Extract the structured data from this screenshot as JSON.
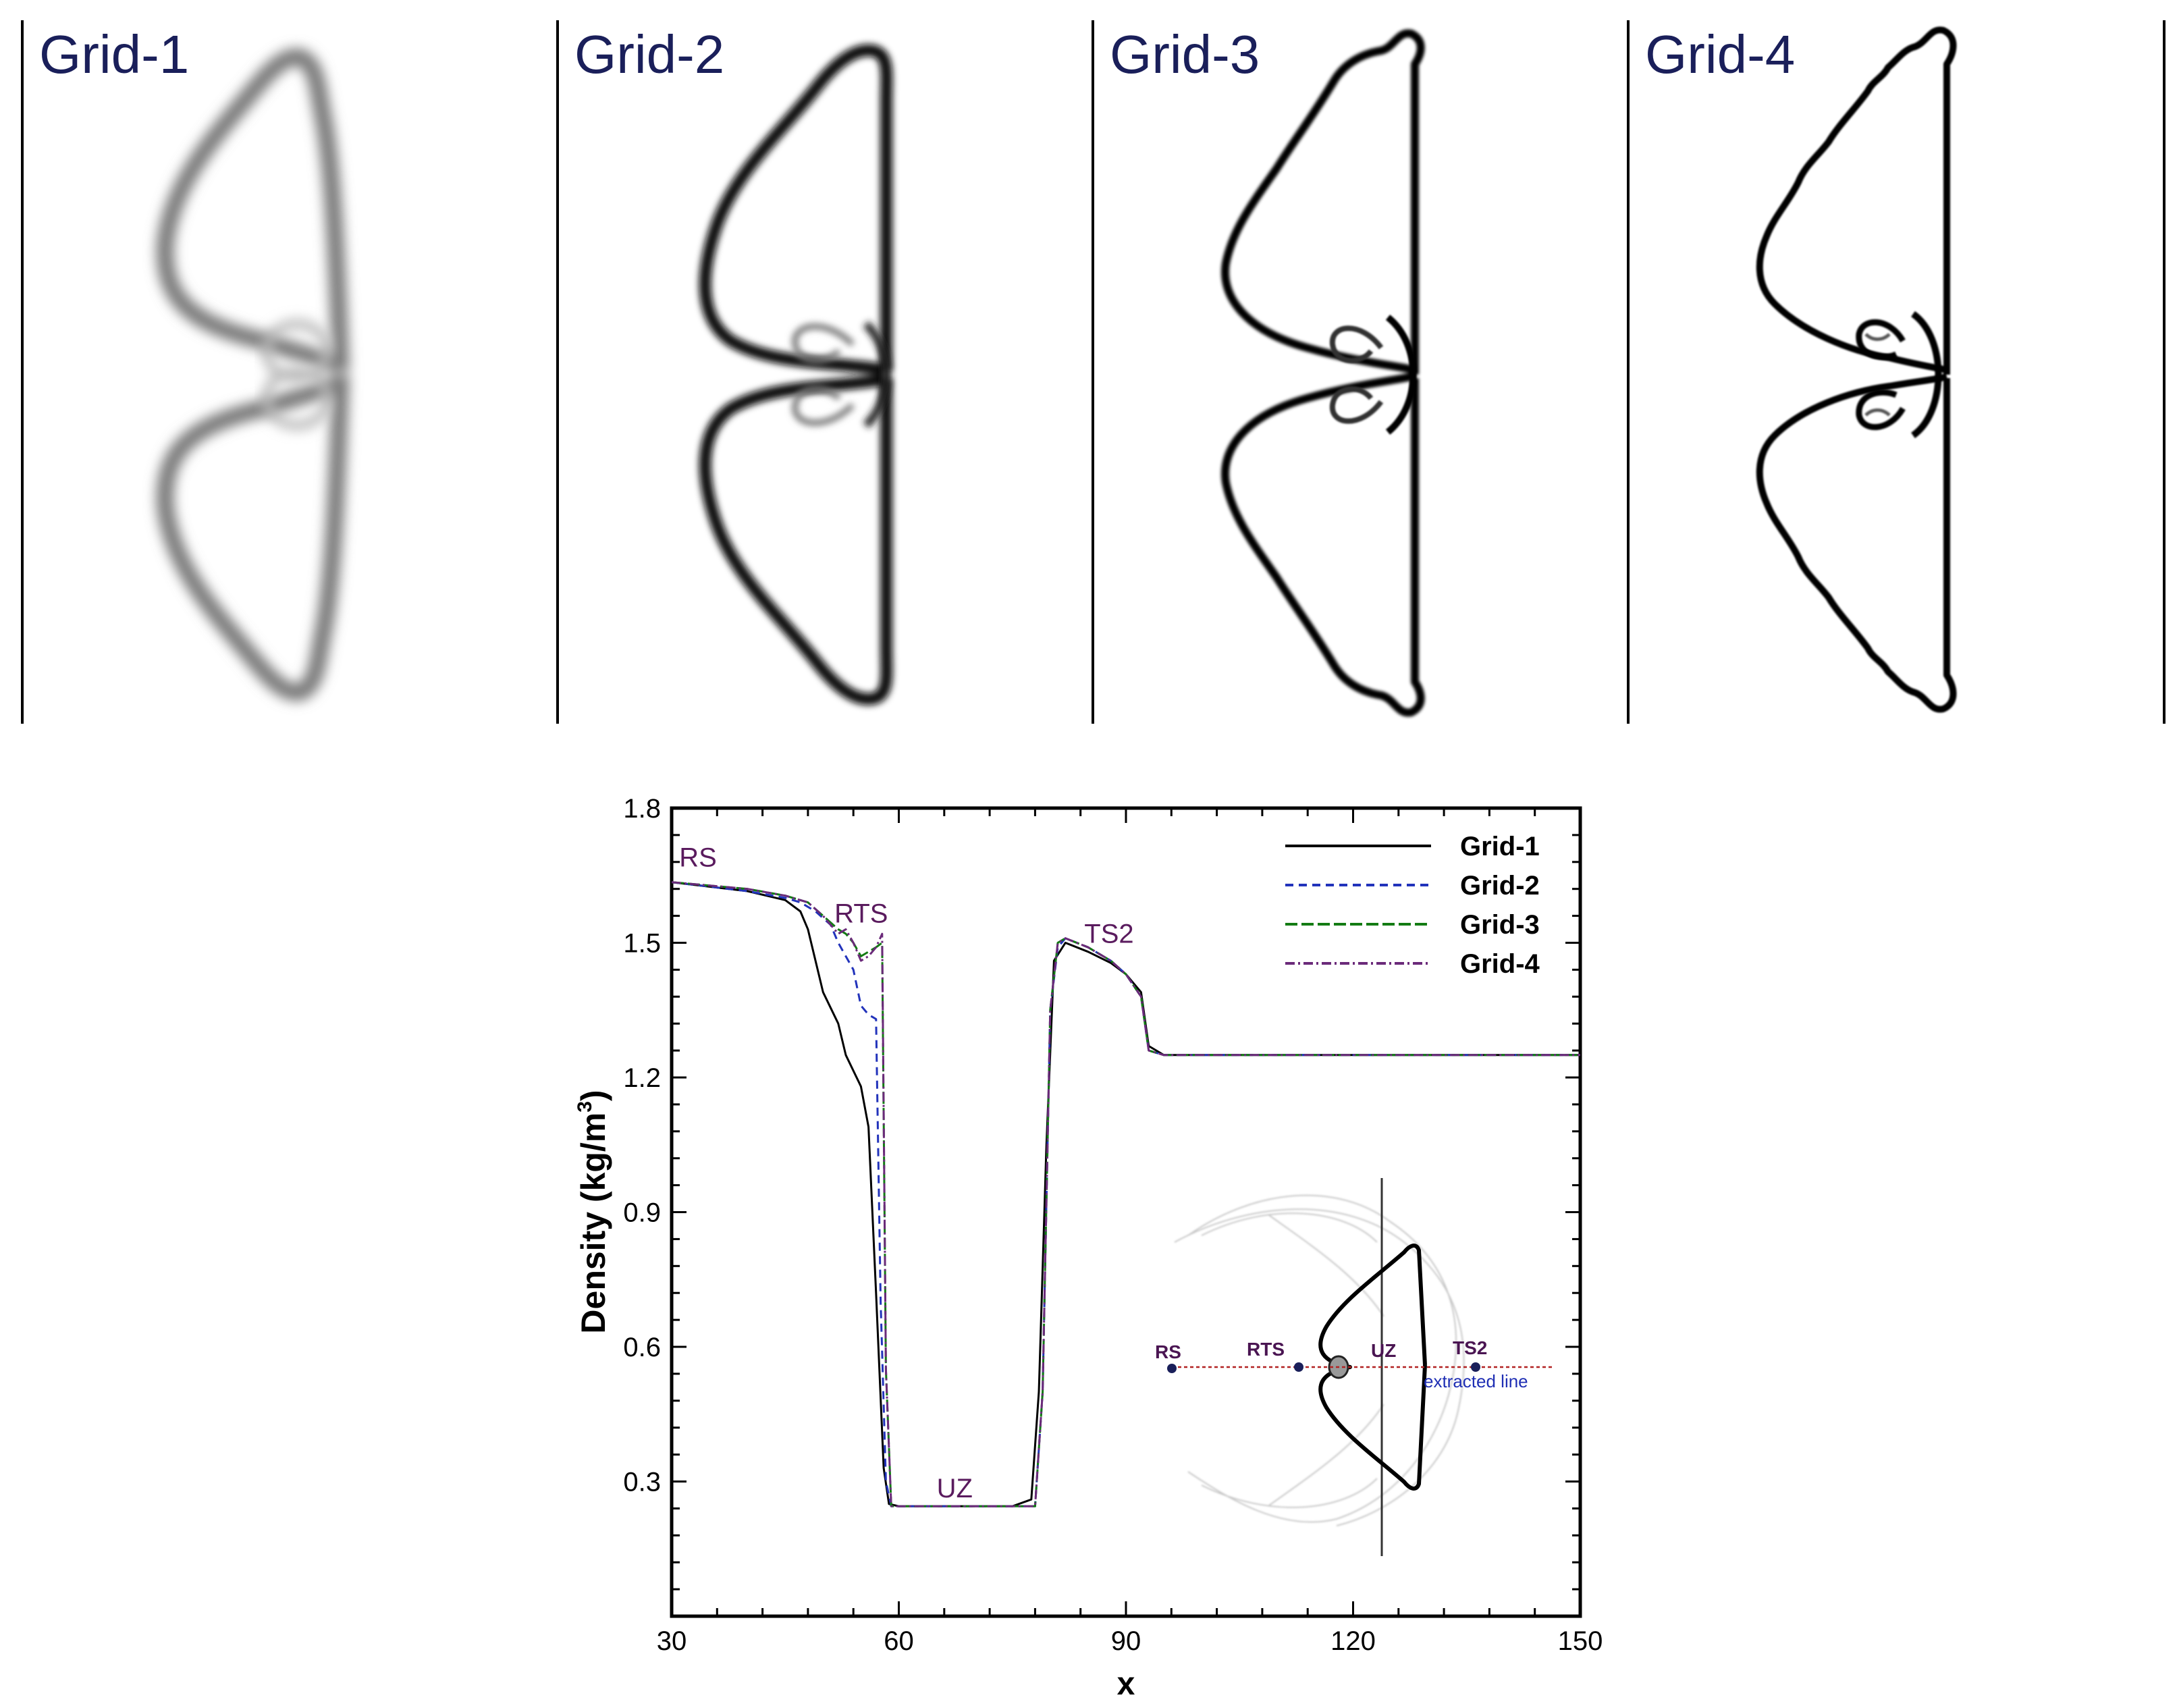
{
  "panels": {
    "titles": [
      "Grid-1",
      "Grid-2",
      "Grid-3",
      "Grid-4"
    ]
  },
  "chart_data": {
    "type": "line",
    "title": "",
    "xlabel": "x",
    "ylabel_main": "Density (kg/m",
    "ylabel_sup": "3",
    "ylabel_close": ")",
    "xlim": [
      30,
      150
    ],
    "ylim": [
      0,
      1.8
    ],
    "xticks": [
      30,
      60,
      90,
      120,
      150
    ],
    "xtick_labels": [
      "30",
      "60",
      "90",
      "120",
      "150"
    ],
    "yticks": [
      0.3,
      0.6,
      0.9,
      1.2,
      1.5,
      1.8
    ],
    "ytick_labels": [
      "0.3",
      "0.6",
      "0.9",
      "1.2",
      "1.5",
      "1.8"
    ],
    "legend_position": "top-right",
    "series": [
      {
        "name": "Grid-1",
        "color": "#000000",
        "dash": "none",
        "x": [
          30,
          40,
          45,
          47,
          48,
          49,
          50,
          52,
          53,
          55,
          56,
          57,
          58,
          58.7,
          60,
          65,
          70,
          75,
          77.5,
          78.5,
          79.5,
          80.5,
          82,
          85,
          88,
          90,
          92,
          93,
          95,
          100,
          120,
          150
        ],
        "y": [
          1.635,
          1.615,
          1.595,
          1.57,
          1.53,
          1.46,
          1.39,
          1.32,
          1.25,
          1.18,
          1.09,
          0.72,
          0.33,
          0.25,
          0.245,
          0.245,
          0.245,
          0.245,
          0.26,
          0.5,
          1.05,
          1.46,
          1.5,
          1.48,
          1.455,
          1.43,
          1.39,
          1.27,
          1.25,
          1.25,
          1.25,
          1.25
        ]
      },
      {
        "name": "Grid-2",
        "color": "#2233bb",
        "dash": "12,8",
        "x": [
          30,
          40,
          45,
          47,
          49,
          51,
          52,
          53,
          54,
          55,
          56,
          57,
          57.6,
          58.3,
          59,
          60,
          65,
          70,
          75,
          78,
          79,
          80,
          81,
          82,
          85,
          88,
          90,
          92,
          93,
          95,
          100,
          150
        ],
        "y": [
          1.635,
          1.615,
          1.6,
          1.59,
          1.57,
          1.54,
          1.5,
          1.47,
          1.44,
          1.36,
          1.34,
          1.33,
          0.7,
          0.3,
          0.245,
          0.245,
          0.245,
          0.245,
          0.245,
          0.245,
          0.5,
          1.35,
          1.49,
          1.51,
          1.49,
          1.46,
          1.43,
          1.38,
          1.26,
          1.25,
          1.25,
          1.25
        ]
      },
      {
        "name": "Grid-3",
        "color": "#137b13",
        "dash": "18,6",
        "x": [
          30,
          40,
          45,
          48,
          50,
          52,
          53,
          54,
          55,
          56,
          57,
          57.8,
          58.3,
          59,
          60,
          65,
          70,
          75,
          78,
          79,
          80,
          81,
          82,
          85,
          88,
          90,
          92,
          93,
          95,
          150
        ],
        "y": [
          1.635,
          1.62,
          1.605,
          1.59,
          1.56,
          1.53,
          1.52,
          1.5,
          1.47,
          1.48,
          1.49,
          1.5,
          0.55,
          0.245,
          0.245,
          0.245,
          0.245,
          0.245,
          0.245,
          0.5,
          1.35,
          1.5,
          1.51,
          1.49,
          1.46,
          1.43,
          1.38,
          1.26,
          1.25,
          1.25
        ]
      },
      {
        "name": "Grid-4",
        "color": "#6b2a7a",
        "dash": "14,5,3,5",
        "x": [
          30,
          40,
          45,
          48,
          50,
          51,
          52,
          53,
          54,
          55,
          56,
          57,
          57.8,
          58.3,
          59,
          60,
          65,
          70,
          75,
          78,
          79,
          80,
          81,
          82,
          85,
          88,
          90,
          92,
          93,
          95,
          150
        ],
        "y": [
          1.635,
          1.62,
          1.605,
          1.59,
          1.56,
          1.54,
          1.52,
          1.53,
          1.5,
          1.46,
          1.47,
          1.49,
          1.52,
          0.55,
          0.245,
          0.245,
          0.245,
          0.245,
          0.245,
          0.245,
          0.5,
          1.35,
          1.5,
          1.51,
          1.49,
          1.46,
          1.43,
          1.38,
          1.26,
          1.25,
          1.25
        ]
      }
    ],
    "annotations": [
      {
        "text": "RS",
        "x": 31,
        "y": 1.67
      },
      {
        "text": "RTS",
        "x": 51.5,
        "y": 1.545
      },
      {
        "text": "TS2",
        "x": 84.5,
        "y": 1.5
      },
      {
        "text": "UZ",
        "x": 65,
        "y": 0.265
      }
    ],
    "inset": {
      "labels": [
        "RS",
        "RTS",
        "UZ",
        "TS2"
      ],
      "note": "extracted line"
    }
  }
}
